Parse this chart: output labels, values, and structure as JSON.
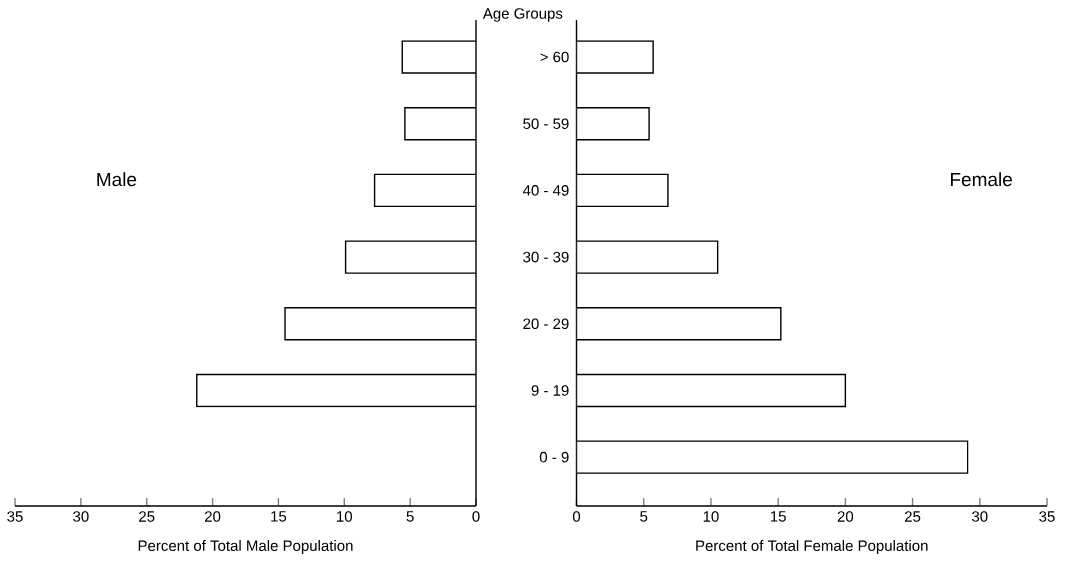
{
  "chart_data": [
    {
      "type": "bar",
      "orientation": "horizontal",
      "title": "Male",
      "xlabel": "Percent of Total Male Population",
      "categories": [
        null,
        null,
        null,
        null,
        null,
        null,
        null
      ],
      "values": [
        5.6,
        5.4,
        7.7,
        9.9,
        14.5,
        21.2,
        null
      ],
      "color": "#ffffff",
      "xlim": [
        35,
        0
      ],
      "xticks": [
        35,
        30,
        25,
        20,
        15,
        10,
        5,
        0
      ],
      "tick_labels": "x"
    },
    {
      "type": "bar",
      "orientation": "horizontal",
      "title": "Female",
      "xlabel": "Percent of Total Female Population",
      "ylabel": "Age Groups",
      "categories": [
        "> 60",
        "50 - 59",
        "40 - 49",
        "30 - 39",
        "20 - 29",
        "9 - 19",
        "0 - 9"
      ],
      "values": [
        5.7,
        5.4,
        6.8,
        10.5,
        15.2,
        20.0,
        29.1
      ],
      "color": "#ffffff",
      "xlim": [
        0,
        35
      ],
      "xticks": [
        0,
        5,
        10,
        15,
        20,
        25,
        30,
        35
      ]
    }
  ]
}
